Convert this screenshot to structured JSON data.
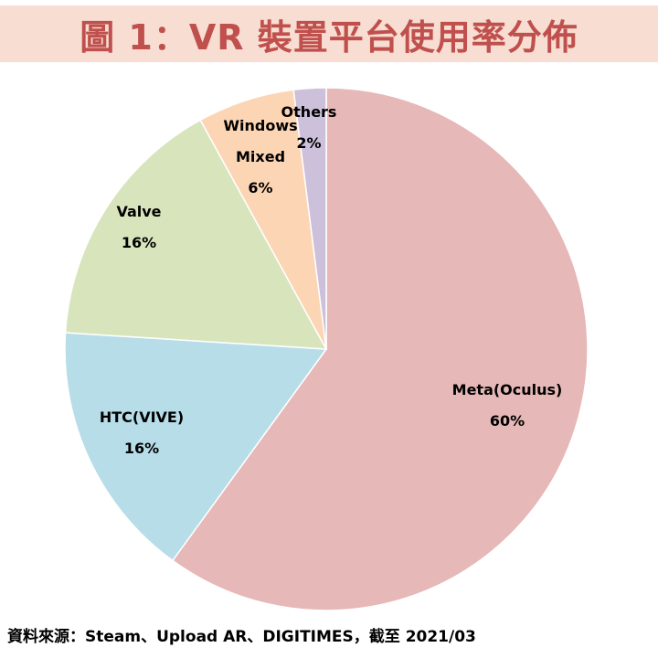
{
  "header": {
    "title": "圖 1：VR 裝置平台使用率分佈"
  },
  "chart_data": {
    "type": "pie",
    "title": "圖 1：VR 裝置平台使用率分佈",
    "start_angle_deg": 0,
    "direction": "clockwise",
    "slices": [
      {
        "name": "Meta(Oculus)",
        "label_lines": [
          "Meta(Oculus)"
        ],
        "value_label": "60%",
        "value": 60,
        "color": "#e6b8b7"
      },
      {
        "name": "HTC(VIVE)",
        "label_lines": [
          "HTC(VIVE)"
        ],
        "value_label": "16%",
        "value": 16,
        "color": "#b7dde8"
      },
      {
        "name": "Valve",
        "label_lines": [
          "Valve"
        ],
        "value_label": "16%",
        "value": 16,
        "color": "#d8e4bc"
      },
      {
        "name": "Windows Mixed",
        "label_lines": [
          "Windows",
          "Mixed"
        ],
        "value_label": "6%",
        "value": 6,
        "color": "#fcd5b4"
      },
      {
        "name": "Others",
        "label_lines": [
          "Others"
        ],
        "value_label": "2%",
        "value": 2,
        "color": "#ccc0da"
      }
    ]
  },
  "footer": {
    "source": "資料來源：Steam、Upload AR、DIGITIMES，截至 2021/03"
  }
}
